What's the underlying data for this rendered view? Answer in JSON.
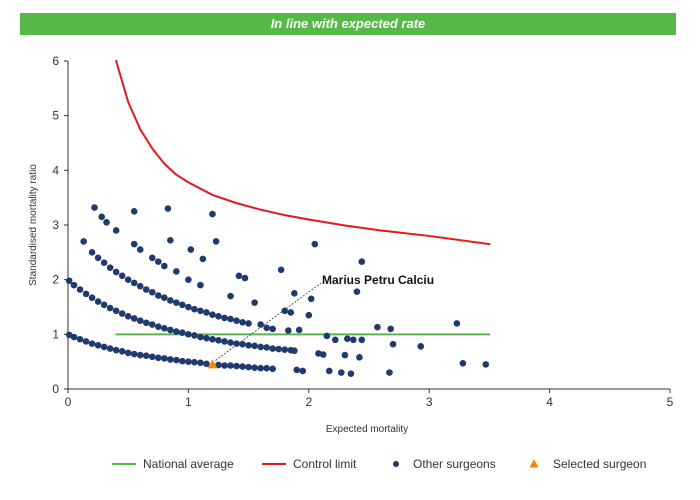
{
  "banner": {
    "title": "In line with expected rate",
    "color": "#56b947"
  },
  "chart_data": {
    "type": "scatter",
    "title": "In line with expected rate",
    "xlabel": "Expected mortality",
    "ylabel": "Standardised mortality ratio",
    "xlim": [
      0,
      5
    ],
    "ylim": [
      0,
      6
    ],
    "xticks": [
      "0",
      "1",
      "2",
      "3",
      "4",
      "5"
    ],
    "yticks": [
      "0",
      "1",
      "2",
      "3",
      "4",
      "5",
      "6"
    ],
    "grid": false,
    "legend_position": "bottom",
    "series": [
      {
        "name": "National average",
        "kind": "line",
        "color": "#56b947",
        "x": [
          0.4,
          3.5
        ],
        "y": [
          1.0,
          1.0
        ]
      },
      {
        "name": "Control limit",
        "kind": "line",
        "color": "#e31a1c",
        "x": [
          0.4,
          0.5,
          0.6,
          0.7,
          0.8,
          0.9,
          1.0,
          1.2,
          1.4,
          1.6,
          1.8,
          2.0,
          2.3,
          2.6,
          3.0,
          3.5
        ],
        "y": [
          6.0,
          5.25,
          4.75,
          4.4,
          4.12,
          3.92,
          3.78,
          3.55,
          3.4,
          3.28,
          3.18,
          3.1,
          2.99,
          2.9,
          2.8,
          2.65
        ]
      },
      {
        "name": "Other surgeons",
        "kind": "scatter",
        "color": "#1f3a6e",
        "points": [
          [
            0.01,
            0.99
          ],
          [
            0.05,
            0.95
          ],
          [
            0.1,
            0.91
          ],
          [
            0.15,
            0.87
          ],
          [
            0.2,
            0.83
          ],
          [
            0.25,
            0.8
          ],
          [
            0.3,
            0.77
          ],
          [
            0.35,
            0.74
          ],
          [
            0.4,
            0.71
          ],
          [
            0.45,
            0.69
          ],
          [
            0.5,
            0.66
          ],
          [
            0.55,
            0.64
          ],
          [
            0.6,
            0.62
          ],
          [
            0.65,
            0.61
          ],
          [
            0.7,
            0.59
          ],
          [
            0.75,
            0.57
          ],
          [
            0.8,
            0.56
          ],
          [
            0.85,
            0.54
          ],
          [
            0.9,
            0.53
          ],
          [
            0.95,
            0.51
          ],
          [
            1.0,
            0.5
          ],
          [
            1.05,
            0.49
          ],
          [
            1.1,
            0.48
          ],
          [
            1.15,
            0.46
          ],
          [
            1.25,
            0.44
          ],
          [
            1.3,
            0.43
          ],
          [
            1.35,
            0.43
          ],
          [
            1.4,
            0.42
          ],
          [
            1.45,
            0.41
          ],
          [
            1.5,
            0.4
          ],
          [
            1.55,
            0.39
          ],
          [
            1.6,
            0.38
          ],
          [
            1.65,
            0.38
          ],
          [
            1.7,
            0.37
          ],
          [
            0.01,
            1.98
          ],
          [
            0.05,
            1.9
          ],
          [
            0.1,
            1.82
          ],
          [
            0.15,
            1.74
          ],
          [
            0.2,
            1.67
          ],
          [
            0.25,
            1.6
          ],
          [
            0.3,
            1.54
          ],
          [
            0.35,
            1.48
          ],
          [
            0.4,
            1.43
          ],
          [
            0.45,
            1.38
          ],
          [
            0.5,
            1.33
          ],
          [
            0.55,
            1.29
          ],
          [
            0.6,
            1.25
          ],
          [
            0.65,
            1.21
          ],
          [
            0.7,
            1.18
          ],
          [
            0.75,
            1.14
          ],
          [
            0.8,
            1.11
          ],
          [
            0.85,
            1.08
          ],
          [
            0.9,
            1.05
          ],
          [
            0.95,
            1.03
          ],
          [
            1.0,
            1.0
          ],
          [
            1.05,
            0.98
          ],
          [
            1.1,
            0.95
          ],
          [
            1.15,
            0.93
          ],
          [
            1.2,
            0.91
          ],
          [
            1.25,
            0.89
          ],
          [
            1.3,
            0.87
          ],
          [
            1.35,
            0.85
          ],
          [
            1.4,
            0.83
          ],
          [
            1.45,
            0.82
          ],
          [
            1.5,
            0.8
          ],
          [
            1.55,
            0.79
          ],
          [
            1.6,
            0.77
          ],
          [
            1.65,
            0.76
          ],
          [
            1.7,
            0.74
          ],
          [
            1.75,
            0.73
          ],
          [
            1.8,
            0.72
          ],
          [
            1.85,
            0.71
          ],
          [
            0.2,
            2.5
          ],
          [
            0.25,
            2.4
          ],
          [
            0.3,
            2.31
          ],
          [
            0.35,
            2.22
          ],
          [
            0.4,
            2.14
          ],
          [
            0.45,
            2.07
          ],
          [
            0.5,
            2.0
          ],
          [
            0.55,
            1.94
          ],
          [
            0.6,
            1.88
          ],
          [
            0.65,
            1.82
          ],
          [
            0.7,
            1.77
          ],
          [
            0.75,
            1.71
          ],
          [
            0.8,
            1.67
          ],
          [
            0.85,
            1.62
          ],
          [
            0.9,
            1.58
          ],
          [
            0.95,
            1.54
          ],
          [
            1.0,
            1.5
          ],
          [
            1.05,
            1.46
          ],
          [
            1.1,
            1.43
          ],
          [
            1.15,
            1.4
          ],
          [
            1.2,
            1.36
          ],
          [
            1.25,
            1.33
          ],
          [
            1.3,
            1.3
          ],
          [
            1.35,
            1.28
          ],
          [
            1.4,
            1.25
          ],
          [
            1.45,
            1.22
          ],
          [
            1.5,
            1.2
          ],
          [
            0.55,
            2.65
          ],
          [
            0.6,
            2.55
          ],
          [
            0.7,
            2.4
          ],
          [
            0.75,
            2.33
          ],
          [
            0.8,
            2.25
          ],
          [
            0.9,
            2.15
          ],
          [
            1.0,
            2.0
          ],
          [
            1.1,
            1.9
          ],
          [
            1.35,
            1.7
          ],
          [
            1.55,
            1.58
          ],
          [
            0.13,
            2.7
          ],
          [
            0.22,
            3.32
          ],
          [
            0.28,
            3.15
          ],
          [
            0.32,
            3.05
          ],
          [
            0.4,
            2.9
          ],
          [
            0.55,
            3.25
          ],
          [
            0.83,
            3.3
          ],
          [
            0.85,
            2.72
          ],
          [
            1.02,
            2.55
          ],
          [
            1.12,
            2.38
          ],
          [
            1.2,
            3.2
          ],
          [
            1.23,
            2.7
          ],
          [
            1.42,
            2.07
          ],
          [
            1.47,
            2.03
          ],
          [
            1.6,
            1.18
          ],
          [
            1.65,
            1.12
          ],
          [
            1.7,
            1.1
          ],
          [
            1.77,
            2.18
          ],
          [
            1.8,
            1.43
          ],
          [
            1.85,
            1.4
          ],
          [
            1.88,
            1.75
          ],
          [
            1.83,
            1.07
          ],
          [
            1.92,
            1.08
          ],
          [
            1.88,
            0.7
          ],
          [
            1.9,
            0.35
          ],
          [
            1.95,
            0.33
          ],
          [
            2.0,
            1.35
          ],
          [
            2.02,
            1.65
          ],
          [
            2.05,
            2.65
          ],
          [
            2.08,
            0.65
          ],
          [
            2.12,
            0.63
          ],
          [
            2.15,
            0.97
          ],
          [
            2.17,
            0.33
          ],
          [
            2.22,
            0.9
          ],
          [
            2.27,
            0.3
          ],
          [
            2.3,
            0.62
          ],
          [
            2.32,
            0.92
          ],
          [
            2.35,
            0.28
          ],
          [
            2.37,
            0.9
          ],
          [
            2.4,
            1.78
          ],
          [
            2.42,
            0.58
          ],
          [
            2.44,
            0.9
          ],
          [
            2.44,
            2.33
          ],
          [
            2.57,
            1.13
          ],
          [
            2.67,
            0.3
          ],
          [
            2.68,
            1.1
          ],
          [
            2.7,
            0.82
          ],
          [
            2.93,
            0.78
          ],
          [
            3.23,
            1.2
          ],
          [
            3.28,
            0.47
          ],
          [
            3.47,
            0.45
          ]
        ]
      },
      {
        "name": "Selected surgeon",
        "kind": "marker",
        "color": "#f28c00",
        "points": [
          [
            1.2,
            0.45
          ]
        ]
      }
    ],
    "annotations": [
      {
        "text": "Marius Petru Calciu",
        "x": 1.2,
        "y": 0.45
      }
    ]
  },
  "legend": [
    {
      "label": "National average",
      "type": "line",
      "color": "#56b947"
    },
    {
      "label": "Control limit",
      "type": "line",
      "color": "#e31a1c"
    },
    {
      "label": "Other surgeons",
      "type": "dot",
      "color": "#1f3a6e"
    },
    {
      "label": "Selected surgeon",
      "type": "triangle",
      "color": "#f28c00"
    }
  ]
}
